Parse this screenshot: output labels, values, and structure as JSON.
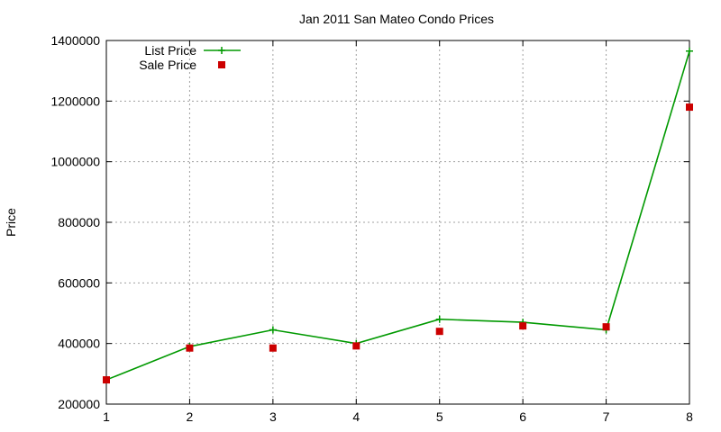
{
  "chart_data": {
    "type": "line",
    "title": "Jan 2011 San Mateo Condo Prices",
    "xlabel": "",
    "ylabel": "Price",
    "xlim": [
      1,
      8
    ],
    "ylim": [
      200000,
      1400000
    ],
    "x_ticks": [
      "1",
      "2",
      "3",
      "4",
      "5",
      "6",
      "7",
      "8"
    ],
    "y_ticks": [
      "200000",
      "400000",
      "600000",
      "800000",
      "1000000",
      "1200000",
      "1400000"
    ],
    "grid": true,
    "legend_position": "top-left",
    "x": [
      1,
      2,
      3,
      4,
      5,
      6,
      7,
      8
    ],
    "series": [
      {
        "name": "List Price",
        "style": "line-with-plus-markers",
        "color": "#009900",
        "values": [
          280000,
          390000,
          445000,
          400000,
          480000,
          470000,
          445000,
          1365000
        ]
      },
      {
        "name": "Sale Price",
        "style": "square-markers",
        "color": "#cc0000",
        "values": [
          280000,
          385000,
          385000,
          392000,
          440000,
          458000,
          455000,
          1180000
        ]
      }
    ]
  }
}
